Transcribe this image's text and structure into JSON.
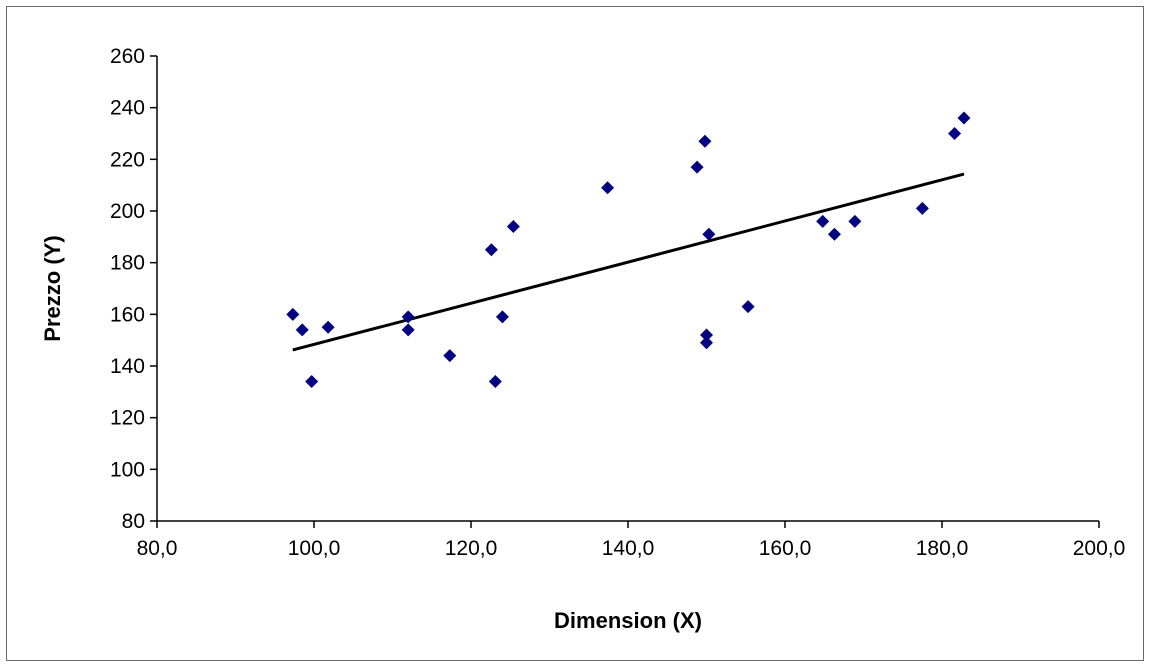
{
  "chart_data": {
    "type": "scatter",
    "xlabel": "Dimension (X)",
    "ylabel": "Prezzo (Y)",
    "xlim": [
      80,
      200
    ],
    "ylim": [
      80,
      260
    ],
    "x_ticks": [
      "80,0",
      "100,0",
      "120,0",
      "140,0",
      "160,0",
      "180,0",
      "200,0"
    ],
    "y_ticks": [
      "80",
      "100",
      "120",
      "140",
      "160",
      "180",
      "200",
      "220",
      "240",
      "260"
    ],
    "grid": false,
    "legend": "none",
    "marker_color": "#000080",
    "trendline_color": "#000000",
    "points": [
      {
        "x": 97.3,
        "y": 160
      },
      {
        "x": 98.5,
        "y": 154
      },
      {
        "x": 99.7,
        "y": 134
      },
      {
        "x": 101.8,
        "y": 155
      },
      {
        "x": 112.0,
        "y": 159
      },
      {
        "x": 112.0,
        "y": 154
      },
      {
        "x": 117.3,
        "y": 144
      },
      {
        "x": 122.6,
        "y": 185
      },
      {
        "x": 123.1,
        "y": 134
      },
      {
        "x": 124.0,
        "y": 159
      },
      {
        "x": 125.4,
        "y": 194
      },
      {
        "x": 137.4,
        "y": 209
      },
      {
        "x": 148.8,
        "y": 217
      },
      {
        "x": 149.8,
        "y": 227
      },
      {
        "x": 150.0,
        "y": 152
      },
      {
        "x": 150.0,
        "y": 149
      },
      {
        "x": 150.3,
        "y": 191
      },
      {
        "x": 155.3,
        "y": 163
      },
      {
        "x": 164.8,
        "y": 196
      },
      {
        "x": 166.3,
        "y": 191
      },
      {
        "x": 168.9,
        "y": 196
      },
      {
        "x": 177.5,
        "y": 201
      },
      {
        "x": 181.6,
        "y": 230
      },
      {
        "x": 182.8,
        "y": 236
      }
    ],
    "trendline": {
      "x": [
        97.3,
        182.8
      ],
      "y": [
        146.2,
        214.3
      ]
    }
  }
}
